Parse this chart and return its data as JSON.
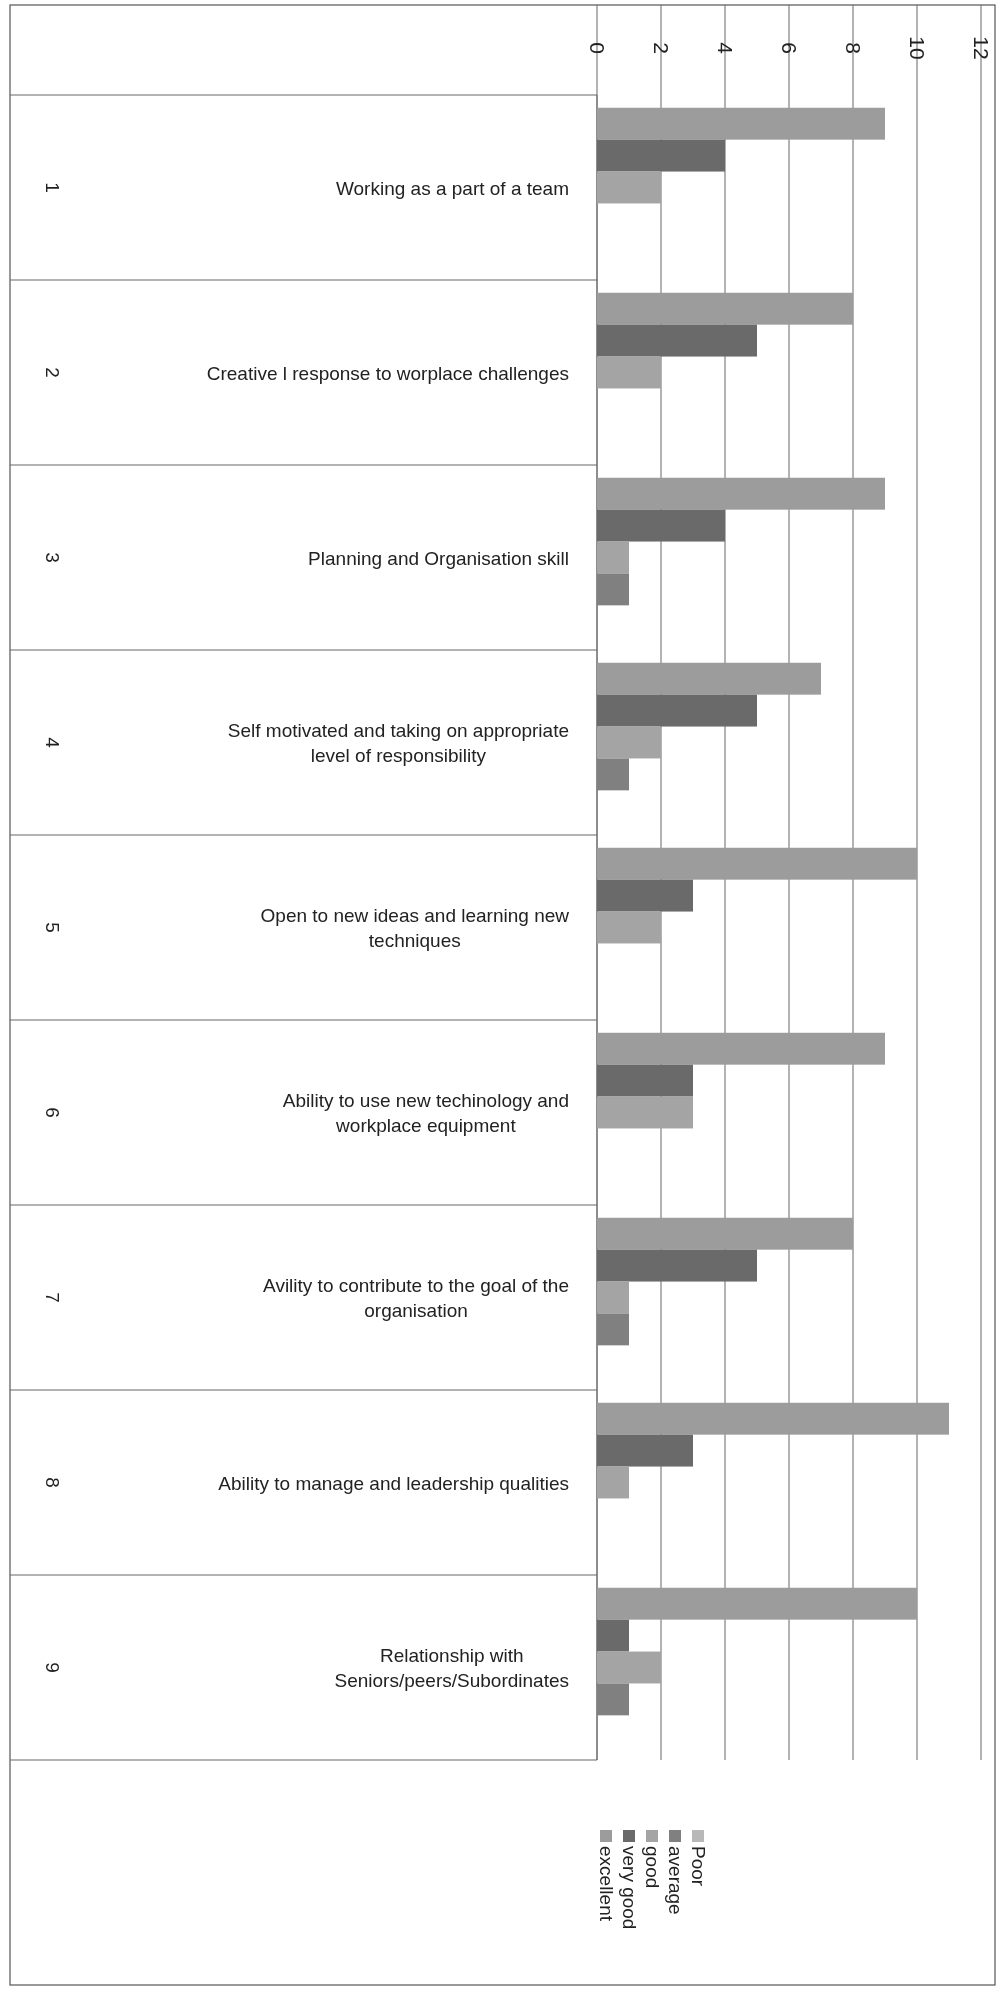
{
  "chart_data": {
    "type": "bar",
    "orientation": "horizontal",
    "categories": [
      "Working as a part of a team",
      "Creative l response to worplace challenges",
      "Planning and Organisation skill",
      "Self motivated and taking on appropriate level of responsibility",
      "Open to new ideas and learning new techniques",
      "Ability to use new techinology and workplace equipment",
      "Avility to contribute to the goal of the organisation",
      "Ability to manage and leadership qualities",
      "Relationship with Seniors/peers/Subordinates"
    ],
    "annotations": [
      "1",
      "2",
      "3",
      "4",
      "5",
      "6",
      "7",
      "8",
      "9"
    ],
    "series": [
      {
        "name": "excellent",
        "color": "#9c9c9c",
        "values": [
          9,
          8,
          9,
          7,
          10,
          9,
          8,
          11,
          10
        ]
      },
      {
        "name": "very good",
        "color": "#6a6a6a",
        "values": [
          4,
          5,
          4,
          5,
          3,
          3,
          5,
          3,
          1
        ]
      },
      {
        "name": "good",
        "color": "#a4a4a4",
        "values": [
          2,
          2,
          1,
          2,
          2,
          3,
          1,
          1,
          2
        ]
      },
      {
        "name": "average",
        "color": "#808080",
        "values": [
          0,
          0,
          1,
          1,
          0,
          0,
          1,
          0,
          1
        ]
      },
      {
        "name": "Poor",
        "color": "#b8b8b8",
        "values": [
          0,
          0,
          0,
          0,
          0,
          0,
          0,
          0,
          0
        ]
      }
    ],
    "xlim": [
      0,
      12
    ],
    "xticks": [
      0,
      2,
      4,
      6,
      8,
      10,
      12
    ],
    "grid": "x",
    "legend": "bottom"
  }
}
